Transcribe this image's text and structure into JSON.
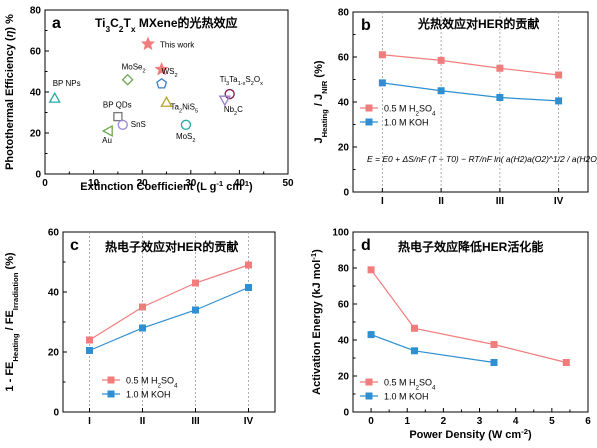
{
  "chart_data": [
    {
      "type": "scatter",
      "panel": "a",
      "title": "Ti3C2Tx MXene的光热效应",
      "title_parts": {
        "pre": "Ti",
        "s1": "3",
        "mid": "C",
        "s2": "2",
        "mid2": "T",
        "s3": "x",
        "post": " MXene的光热效应"
      },
      "xlabel": "Extinction Coefficient (L g-1 cm-1)",
      "xlabel_parts": {
        "pre": "Extinction Coefficient (L g",
        "sup": "-1",
        "post": " cm",
        "sup2": "-1",
        "end": ")"
      },
      "ylabel": "Photothermal Efficiency (η) %",
      "ylabel_parts": {
        "pre": "Photothermal Efficiency (",
        "eta": "η",
        "post": ") %"
      },
      "xlim": [
        0,
        50
      ],
      "ylim": [
        0,
        80
      ],
      "xticks": [
        "0",
        "10",
        "20",
        "30",
        "40",
        "50"
      ],
      "yticks": [
        "0",
        "20",
        "40",
        "60",
        "80"
      ],
      "legend": "This work",
      "points": [
        {
          "name": "This work",
          "x": 24,
          "y": 51,
          "marker": "star",
          "color": "#f07c7c"
        },
        {
          "name": "BP NPs",
          "x": 2,
          "y": 37,
          "marker": "triangle-up",
          "color": "#2aa8a8"
        },
        {
          "name": "MoSe2",
          "x": 17,
          "y": 46,
          "marker": "diamond",
          "color": "#6aa84f"
        },
        {
          "name": "WS2",
          "x": 24,
          "y": 44,
          "marker": "pentagon",
          "color": "#3d7fc4"
        },
        {
          "name": "Ta2NiS5",
          "x": 25,
          "y": 35,
          "marker": "triangle-up",
          "color": "#b8a329"
        },
        {
          "name": "Ti3Ta1-xS2Ox",
          "x": 38,
          "y": 39,
          "marker": "circle",
          "color": "#8b1a4a"
        },
        {
          "name": "Nb2C",
          "x": 37,
          "y": 36,
          "marker": "triangle-down",
          "color": "#9c7bd4"
        },
        {
          "name": "BP QDs",
          "x": 15,
          "y": 28,
          "marker": "square",
          "color": "#777777"
        },
        {
          "name": "SnS",
          "x": 16,
          "y": 24,
          "marker": "circle",
          "color": "#9a8ad8"
        },
        {
          "name": "Au",
          "x": 13,
          "y": 21,
          "marker": "triangle-left",
          "color": "#6aa84f"
        },
        {
          "name": "MoS2",
          "x": 29,
          "y": 24,
          "marker": "circle",
          "color": "#2aa8a8"
        }
      ]
    },
    {
      "type": "line",
      "panel": "b",
      "title": "光热效应对HER的贡献",
      "ylabel": "JHeating / JNIR (%)",
      "ylabel_parts": {
        "j1": "J",
        "s1": "Heating",
        "sep": " / J",
        "s2": "NIR",
        "post": " (%)"
      },
      "categories": [
        "I",
        "II",
        "III",
        "IV"
      ],
      "ylim": [
        0,
        80
      ],
      "yticks": [
        "0",
        "20",
        "40",
        "60",
        "80"
      ],
      "series": [
        {
          "name": "0.5 M H2SO4",
          "values": [
            61,
            58.5,
            55,
            52
          ],
          "color": "#f07c7c"
        },
        {
          "name": "1.0 M KOH",
          "values": [
            48.5,
            45,
            42,
            40.5
          ],
          "color": "#2f8fd0"
        }
      ],
      "legend_parts": [
        {
          "pre": "0.5 M H",
          "sub": "2",
          "mid": "SO",
          "sub2": "4"
        },
        {
          "pre": "1.0 M KOH"
        }
      ],
      "equation": "E = E0 + ΔS/nF (T − T0) − RT/nF ln( a(H2)a(O2)^1/2 / a(H2O) )"
    },
    {
      "type": "line",
      "panel": "c",
      "title": "热电子效应对HER的贡献",
      "ylabel": "1 - FEHeating / FEIrradiation (%)",
      "ylabel_parts": {
        "pre": "1 - FE",
        "s1": "Heating",
        "sep": " / FE",
        "s2": "Irradiation",
        "post": " (%)"
      },
      "categories": [
        "I",
        "II",
        "III",
        "IV"
      ],
      "ylim": [
        0,
        60
      ],
      "yticks": [
        "0",
        "20",
        "40",
        "60"
      ],
      "series": [
        {
          "name": "0.5 M H2SO4",
          "values": [
            24,
            35,
            43,
            49
          ],
          "color": "#f07c7c"
        },
        {
          "name": "1.0 M KOH",
          "values": [
            20.5,
            28,
            34,
            41.5
          ],
          "color": "#2f8fd0"
        }
      ],
      "legend_parts": [
        {
          "pre": "0.5 M H",
          "sub": "2",
          "mid": "SO",
          "sub2": "4"
        },
        {
          "pre": "1.0 M KOH"
        }
      ]
    },
    {
      "type": "line",
      "panel": "d",
      "title": "热电子效应降低HER活化能",
      "xlabel": "Power Density (W cm-2)",
      "xlabel_parts": {
        "pre": "Power Density (W cm",
        "sup": "-2",
        "post": ")"
      },
      "ylabel": "Activation Energy (kJ mol-1)",
      "ylabel_parts": {
        "pre": "Activation Energy (kJ mol",
        "sup": "-1",
        "post": ")"
      },
      "xlim": [
        -0.5,
        6
      ],
      "ylim": [
        0,
        100
      ],
      "xticks": [
        "0",
        "1",
        "2",
        "3",
        "4",
        "5",
        "6"
      ],
      "yticks": [
        "0",
        "20",
        "40",
        "60",
        "80",
        "100"
      ],
      "series": [
        {
          "name": "0.5 M H2SO4",
          "x": [
            0,
            1.2,
            3.4,
            5.4
          ],
          "values": [
            79,
            46.5,
            37.5,
            27.5
          ],
          "color": "#f07c7c"
        },
        {
          "name": "1.0 M KOH",
          "x": [
            0,
            1.2,
            3.4
          ],
          "values": [
            43,
            34,
            27.5
          ],
          "color": "#2f8fd0"
        }
      ],
      "legend_parts": [
        {
          "pre": "0.5 M H",
          "sub": "2",
          "mid": "SO",
          "sub2": "4"
        },
        {
          "pre": "1.0 M KOH"
        }
      ]
    }
  ]
}
